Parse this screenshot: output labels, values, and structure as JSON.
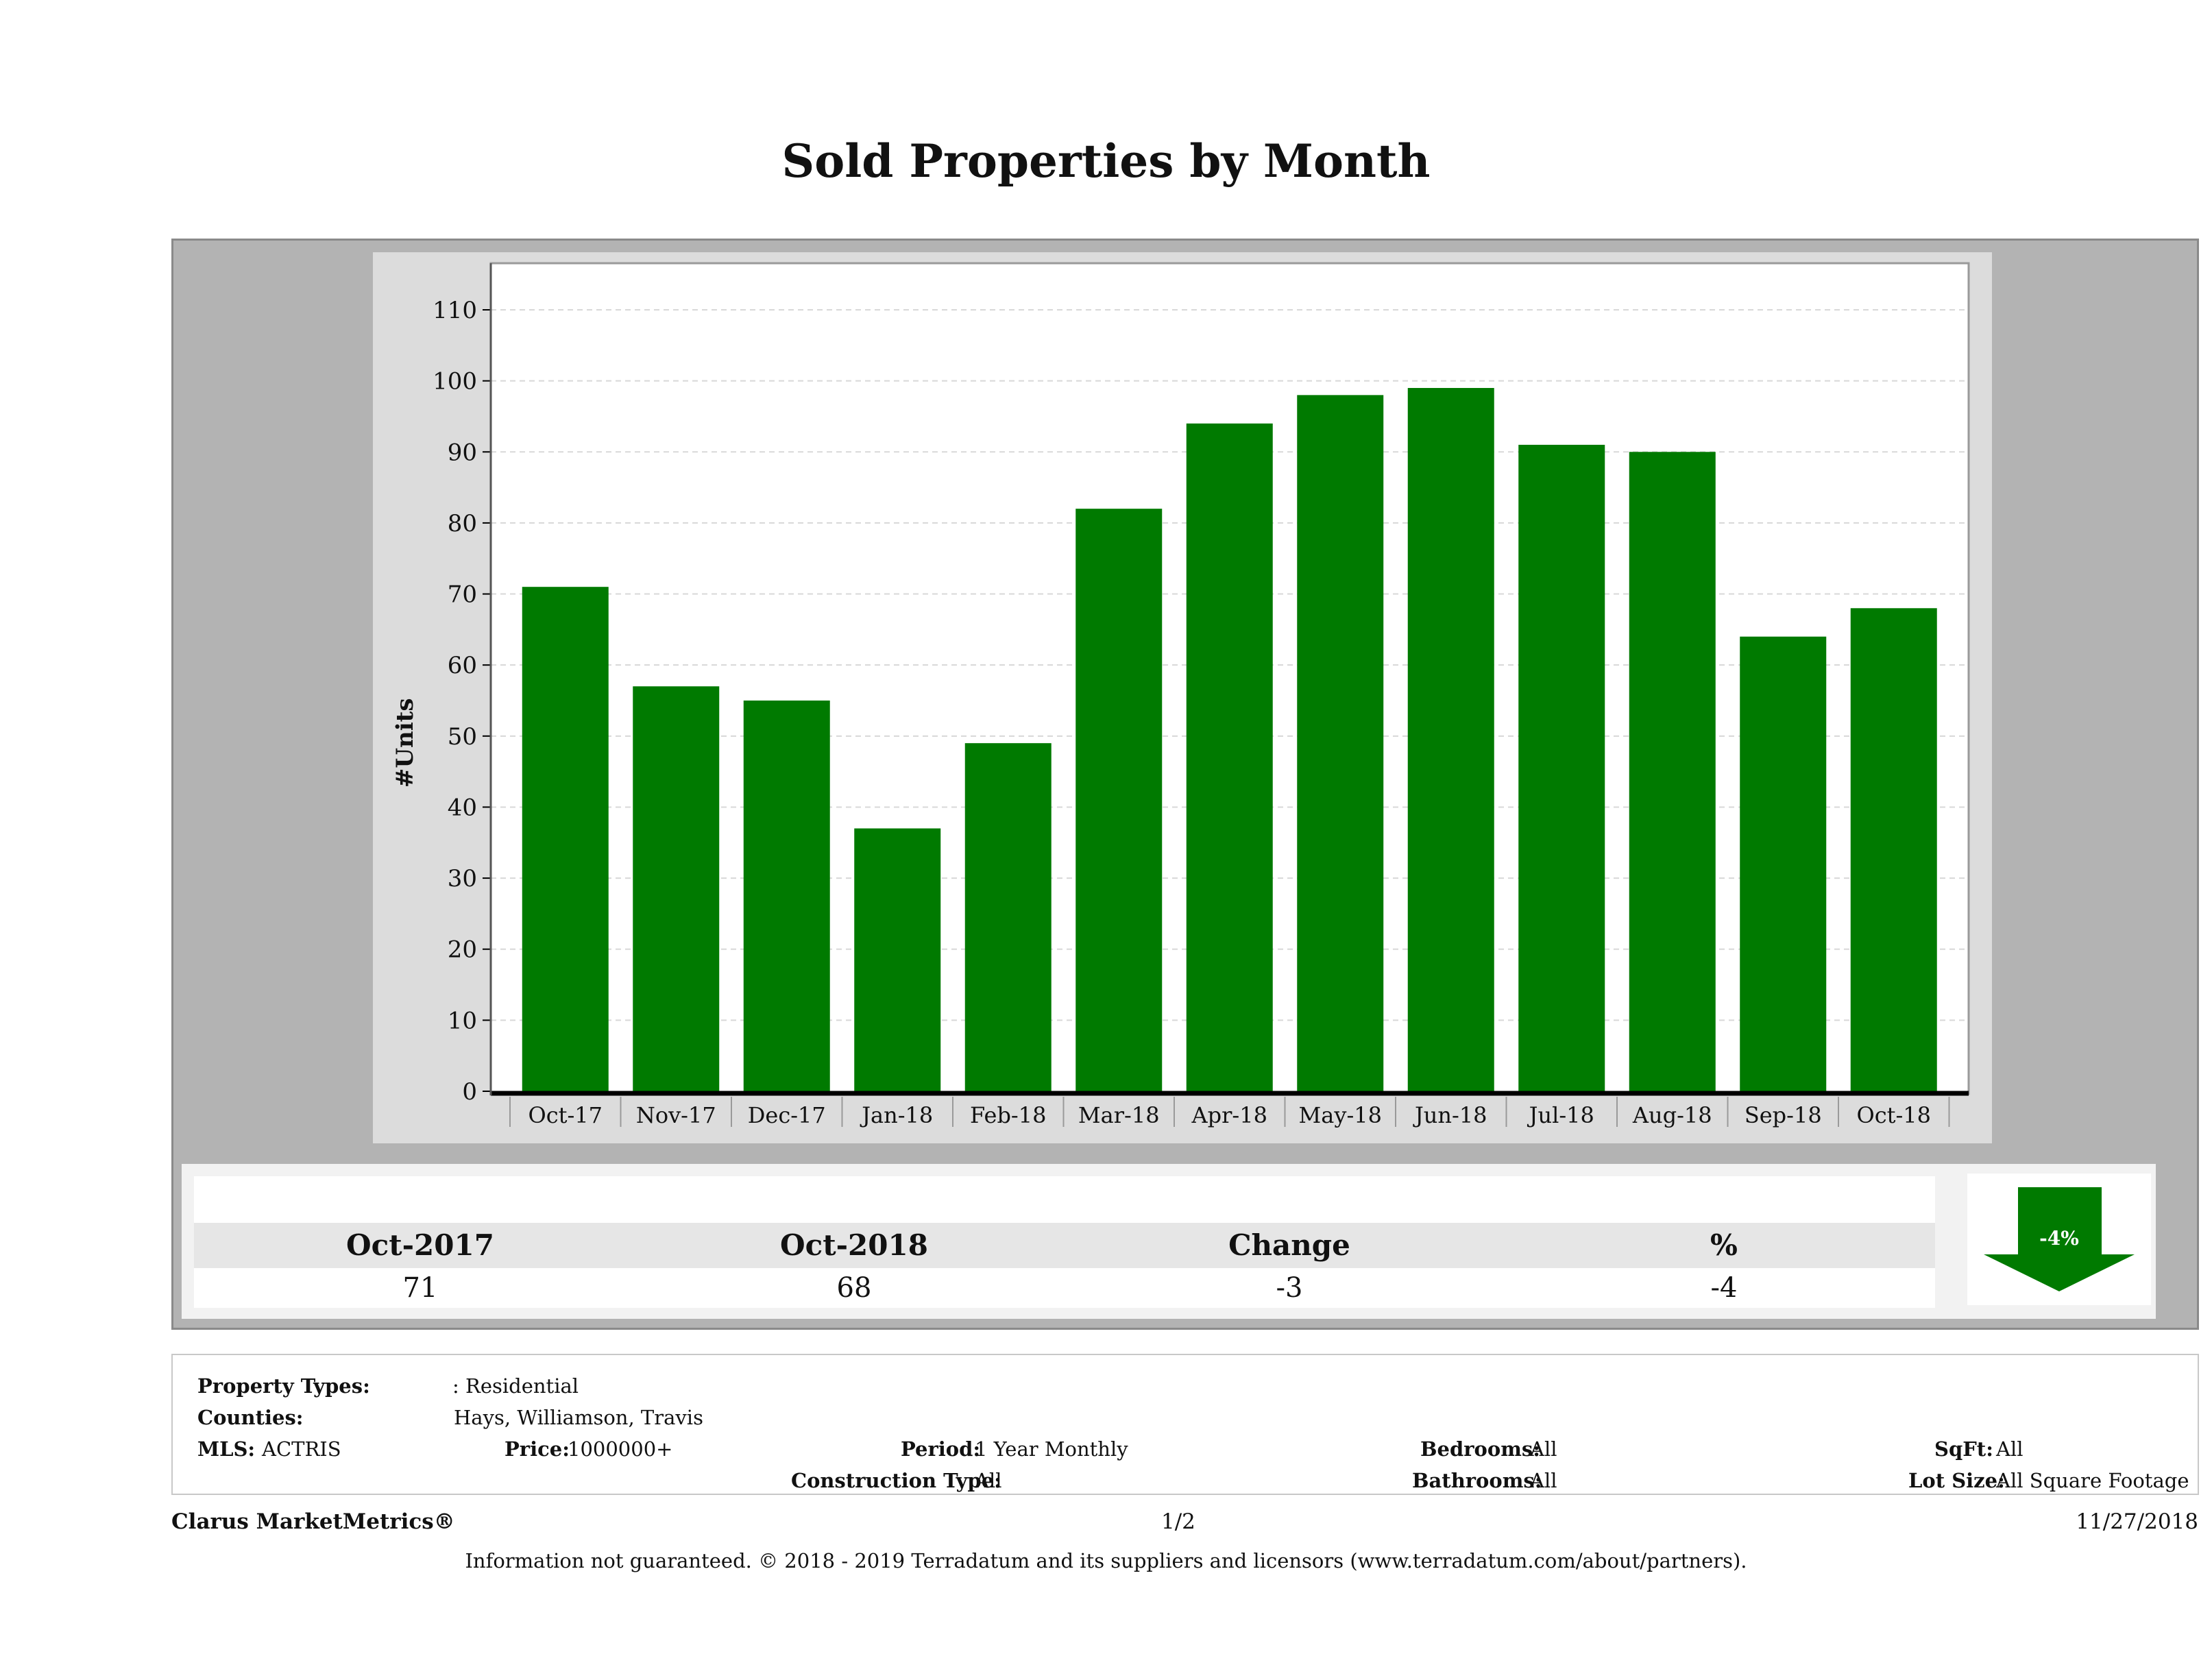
{
  "chart_data": {
    "type": "bar",
    "title": "Sold Properties by Month",
    "ylabel": "#Units",
    "xlabel": "",
    "ylim": [
      0,
      115
    ],
    "yticks": [
      0,
      10,
      20,
      30,
      40,
      50,
      60,
      70,
      80,
      90,
      100,
      110
    ],
    "categories": [
      "Oct-17",
      "Nov-17",
      "Dec-17",
      "Jan-18",
      "Feb-18",
      "Mar-18",
      "Apr-18",
      "May-18",
      "Jun-18",
      "Jul-18",
      "Aug-18",
      "Sep-18",
      "Oct-18"
    ],
    "values": [
      71,
      57,
      55,
      37,
      49,
      82,
      94,
      98,
      99,
      91,
      90,
      64,
      68
    ],
    "bar_color": "#007a00",
    "grid": true,
    "legend": "none"
  },
  "summary": {
    "headers": [
      "Oct-2017",
      "Oct-2018",
      "Change",
      "%"
    ],
    "values": [
      "71",
      "68",
      "-3",
      "-4"
    ],
    "arrow_label": "-4%",
    "arrow_direction": "down",
    "arrow_color": "#007a00"
  },
  "filters": {
    "property_types_label": "Property Types:",
    "property_types_value": ": Residential",
    "counties_label": "Counties:",
    "counties_value": "Hays, Williamson, Travis",
    "mls_label": "MLS:",
    "mls_value": "ACTRIS",
    "price_label": "Price:",
    "price_value": "1000000+",
    "period_label": "Period:",
    "period_value": "1 Year Monthly",
    "construction_label": "Construction Type:",
    "construction_value": "All",
    "bedrooms_label": "Bedrooms:",
    "bedrooms_value": "All",
    "bathrooms_label": "Bathrooms:",
    "bathrooms_value": "All",
    "sqft_label": "SqFt:",
    "sqft_value": "All",
    "lotsize_label": "Lot Size:",
    "lotsize_value": "All Square Footage"
  },
  "footer": {
    "brand": "Clarus MarketMetrics®",
    "page": "1/2",
    "date": "11/27/2018",
    "disclaimer": "Information not guaranteed. © 2018 - 2019 Terradatum and its suppliers and licensors (www.terradatum.com/about/partners)."
  }
}
